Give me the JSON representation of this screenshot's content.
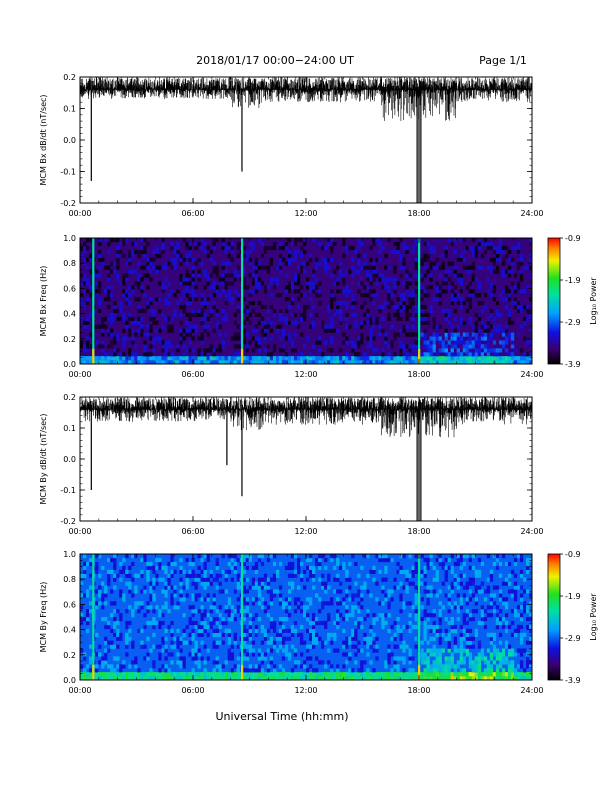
{
  "header": {
    "title": "2018/01/17  00:00−24:00 UT",
    "page": "Page 1/1"
  },
  "xaxis_title": "Universal Time (hh:mm)",
  "colorbar_label": "Log₁₀ Power",
  "chart_data": [
    {
      "type": "line",
      "ylabel": "MCM Bx dB/dt (nT/sec)",
      "x_range_hours": [
        0,
        24
      ],
      "x_ticks": [
        "00:00",
        "06:00",
        "12:00",
        "18:00",
        "24:00"
      ],
      "ylim": [
        -0.2,
        0.2
      ],
      "y_ticks": [
        "0.2",
        "0.1",
        "0.0",
        "-0.1",
        "-0.2"
      ],
      "baseline": 0.16,
      "noise_band": [
        {
          "x": [
            0,
            8
          ],
          "low": 0.13,
          "high": 0.2
        },
        {
          "x": [
            8,
            10
          ],
          "low": 0.1,
          "high": 0.2
        },
        {
          "x": [
            10,
            16
          ],
          "low": 0.12,
          "high": 0.2
        },
        {
          "x": [
            16,
            20
          ],
          "low": 0.06,
          "high": 0.2
        },
        {
          "x": [
            20,
            24
          ],
          "low": 0.12,
          "high": 0.2
        }
      ],
      "spikes": [
        {
          "x": 0.6,
          "y": -0.13
        },
        {
          "x": 8.6,
          "y": -0.1
        },
        {
          "x": 17.9,
          "y": -0.2
        },
        {
          "x": 18.0,
          "y": -0.2
        },
        {
          "x": 18.1,
          "y": -0.2
        }
      ]
    },
    {
      "type": "heatmap",
      "ylabel": "MCM Bx Freq (Hz)",
      "x_range_hours": [
        0,
        24
      ],
      "x_ticks": [
        "00:00",
        "06:00",
        "12:00",
        "18:00",
        "24:00"
      ],
      "ylim": [
        0.0,
        1.0
      ],
      "y_ticks": [
        "1.0",
        "0.8",
        "0.6",
        "0.4",
        "0.2",
        "0.0"
      ],
      "colorbar": {
        "min": -3.9,
        "max": -0.9,
        "ticks": [
          "-0.9",
          "-1.9",
          "-2.9",
          "-3.9"
        ]
      },
      "background_level": -3.5,
      "harmonic_spacing_hz": 0.0625,
      "bright_times_hours": [
        0.7,
        8.6,
        18.0
      ],
      "disturbance_hours": [
        18.0,
        23.0
      ]
    },
    {
      "type": "line",
      "ylabel": "MCM By dB/dt (nT/sec)",
      "x_range_hours": [
        0,
        24
      ],
      "x_ticks": [
        "00:00",
        "06:00",
        "12:00",
        "18:00",
        "24:00"
      ],
      "ylim": [
        -0.2,
        0.2
      ],
      "y_ticks": [
        "0.2",
        "0.1",
        "0.0",
        "-0.1",
        "-0.2"
      ],
      "baseline": 0.16,
      "noise_band": [
        {
          "x": [
            0,
            8
          ],
          "low": 0.12,
          "high": 0.2
        },
        {
          "x": [
            8,
            10
          ],
          "low": 0.09,
          "high": 0.2
        },
        {
          "x": [
            10,
            16
          ],
          "low": 0.11,
          "high": 0.2
        },
        {
          "x": [
            16,
            20
          ],
          "low": 0.07,
          "high": 0.2
        },
        {
          "x": [
            20,
            24
          ],
          "low": 0.11,
          "high": 0.2
        }
      ],
      "spikes": [
        {
          "x": 0.6,
          "y": -0.1
        },
        {
          "x": 7.8,
          "y": -0.02
        },
        {
          "x": 8.6,
          "y": -0.12
        },
        {
          "x": 17.9,
          "y": -0.2
        },
        {
          "x": 18.0,
          "y": -0.2
        },
        {
          "x": 18.1,
          "y": -0.2
        }
      ]
    },
    {
      "type": "heatmap",
      "ylabel": "MCM By Freq (Hz)",
      "x_range_hours": [
        0,
        24
      ],
      "x_ticks": [
        "00:00",
        "06:00",
        "12:00",
        "18:00",
        "24:00"
      ],
      "ylim": [
        0.0,
        1.0
      ],
      "y_ticks": [
        "1.0",
        "0.8",
        "0.6",
        "0.4",
        "0.2",
        "0.0"
      ],
      "colorbar": {
        "min": -3.9,
        "max": -0.9,
        "ticks": [
          "-0.9",
          "-1.9",
          "-2.9",
          "-3.9"
        ]
      },
      "background_level": -2.9,
      "harmonic_spacing_hz": 0.0625,
      "bright_times_hours": [
        0.7,
        8.6,
        18.0
      ],
      "disturbance_hours": [
        18.0,
        23.0
      ]
    }
  ]
}
